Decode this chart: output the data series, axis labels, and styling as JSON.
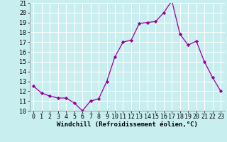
{
  "x": [
    0,
    1,
    2,
    3,
    4,
    5,
    6,
    7,
    8,
    9,
    10,
    11,
    12,
    13,
    14,
    15,
    16,
    17,
    18,
    19,
    20,
    21,
    22,
    23
  ],
  "y": [
    12.5,
    11.8,
    11.5,
    11.3,
    11.3,
    10.8,
    10.0,
    11.0,
    11.2,
    13.0,
    15.5,
    17.0,
    17.2,
    18.9,
    19.0,
    19.1,
    20.0,
    21.2,
    17.8,
    16.7,
    17.1,
    15.0,
    13.4,
    12.0
  ],
  "line_color": "#990099",
  "marker": "D",
  "marker_size": 2.2,
  "bg_color": "#c8eef0",
  "grid_color": "#ffffff",
  "xlabel": "Windchill (Refroidissement éolien,°C)",
  "xlabel_fontsize": 6.5,
  "tick_fontsize": 6.0,
  "ylim": [
    10,
    21
  ],
  "xlim": [
    -0.5,
    23.5
  ],
  "yticks": [
    10,
    11,
    12,
    13,
    14,
    15,
    16,
    17,
    18,
    19,
    20,
    21
  ],
  "xticks": [
    0,
    1,
    2,
    3,
    4,
    5,
    6,
    7,
    8,
    9,
    10,
    11,
    12,
    13,
    14,
    15,
    16,
    17,
    18,
    19,
    20,
    21,
    22,
    23
  ]
}
